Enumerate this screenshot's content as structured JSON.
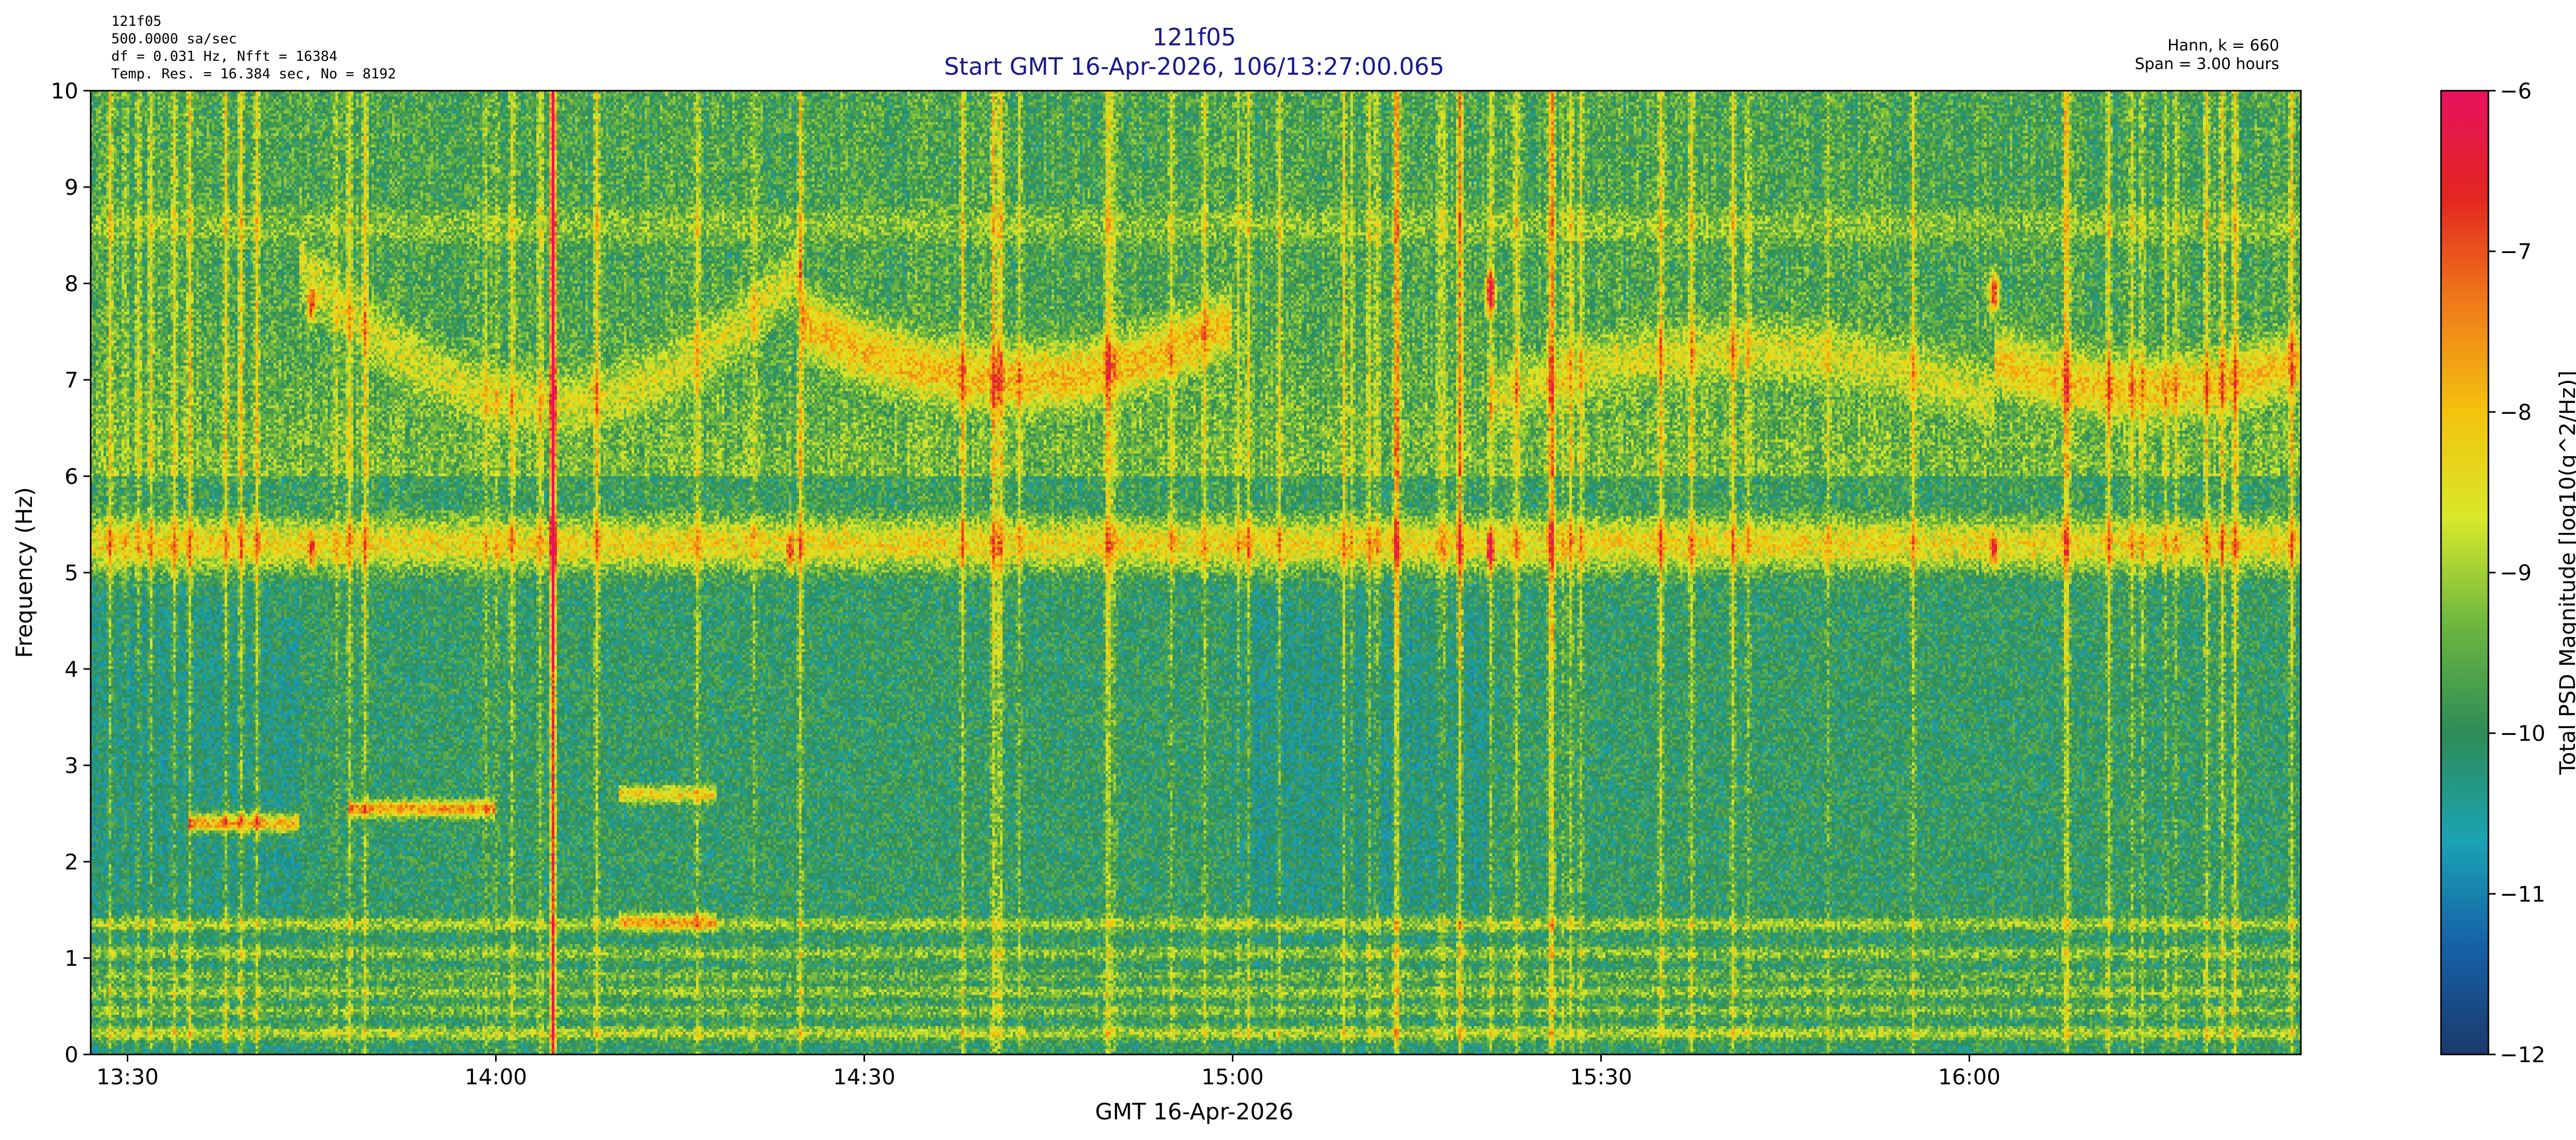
{
  "chart_data": {
    "type": "heatmap",
    "title": "121f05",
    "subtitle": "Start GMT 16-Apr-2026, 106/13:27:00.065",
    "info_left": [
      "121f05",
      "500.0000 sa/sec",
      "df = 0.031 Hz,  Nfft = 16384",
      "Temp. Res. = 16.384 sec, No = 8192"
    ],
    "info_right": [
      "Hann, k = 660",
      "Span = 3.00 hours"
    ],
    "xlabel": "GMT 16-Apr-2026",
    "ylabel": "Frequency (Hz)",
    "colorbar_label": "Total PSD Magnitude [log10(g^2/Hz)]",
    "xlim": [
      "13:27:00",
      "16:27:00"
    ],
    "ylim": [
      0,
      10
    ],
    "x_ticks": [
      "13:30",
      "14:00",
      "14:30",
      "15:00",
      "15:30",
      "16:00"
    ],
    "y_ticks": [
      0,
      1,
      2,
      3,
      4,
      5,
      6,
      7,
      8,
      9,
      10
    ],
    "clim": [
      -12,
      -6
    ],
    "colorbar_ticks": [
      -12,
      -11,
      -10,
      -9,
      -8,
      -7,
      -6
    ],
    "colormap": [
      "#1b3a6b",
      "#1560a8",
      "#1aa3b3",
      "#2e8c57",
      "#6cb640",
      "#d8e82a",
      "#f4c20d",
      "#f07c1a",
      "#e3261f",
      "#e8125f"
    ],
    "grid": false,
    "features": {
      "background_level": -10.3,
      "horizontal_bands": [
        {
          "freq": 0.22,
          "level": -8.9
        },
        {
          "freq": 0.45,
          "level": -9.3
        },
        {
          "freq": 0.65,
          "level": -9.2
        },
        {
          "freq": 0.82,
          "level": -9.4
        },
        {
          "freq": 1.05,
          "level": -9.2
        },
        {
          "freq": 1.35,
          "level": -9.0
        },
        {
          "freq": 5.3,
          "level": -8.3
        },
        {
          "freq": 8.6,
          "level": -9.2
        }
      ],
      "arcs": [
        {
          "t_start": "13:44",
          "t_end": "14:25",
          "f_edge": 8.2,
          "f_mid": 6.75,
          "level": -8.9
        },
        {
          "t_start": "14:25",
          "t_end": "15:00",
          "f_edge": 7.6,
          "f_mid": 7.0,
          "level": -8.3
        },
        {
          "t_start": "15:21",
          "t_end": "16:02",
          "f_edge": 6.8,
          "f_mid": 7.3,
          "level": -8.9
        },
        {
          "t_start": "16:02",
          "t_end": "16:27",
          "f_edge": 7.2,
          "f_mid": 6.9,
          "level": -8.4
        }
      ],
      "hot_spots": [
        {
          "time": "13:45",
          "freq": 7.8,
          "level": -6.8
        },
        {
          "time": "13:45",
          "freq": 5.25,
          "level": -6.6
        },
        {
          "time": "14:24",
          "freq": 5.25,
          "level": -6.6
        },
        {
          "time": "15:21",
          "freq": 7.9,
          "level": -6.7
        },
        {
          "time": "15:21",
          "freq": 5.25,
          "level": -6.6
        },
        {
          "time": "16:02",
          "freq": 7.9,
          "level": -6.7
        },
        {
          "time": "16:02",
          "freq": 5.25,
          "level": -6.6
        }
      ],
      "low_band_tones": [
        {
          "t_start": "13:35",
          "t_end": "13:44",
          "freq": 2.4,
          "level": -7.8
        },
        {
          "t_start": "13:48",
          "t_end": "14:00",
          "freq": 2.55,
          "level": -7.6
        },
        {
          "t_start": "14:10",
          "t_end": "14:18",
          "freq": 1.37,
          "level": -7.6
        },
        {
          "t_start": "14:10",
          "t_end": "14:18",
          "freq": 2.7,
          "level": -8.2
        }
      ]
    }
  }
}
